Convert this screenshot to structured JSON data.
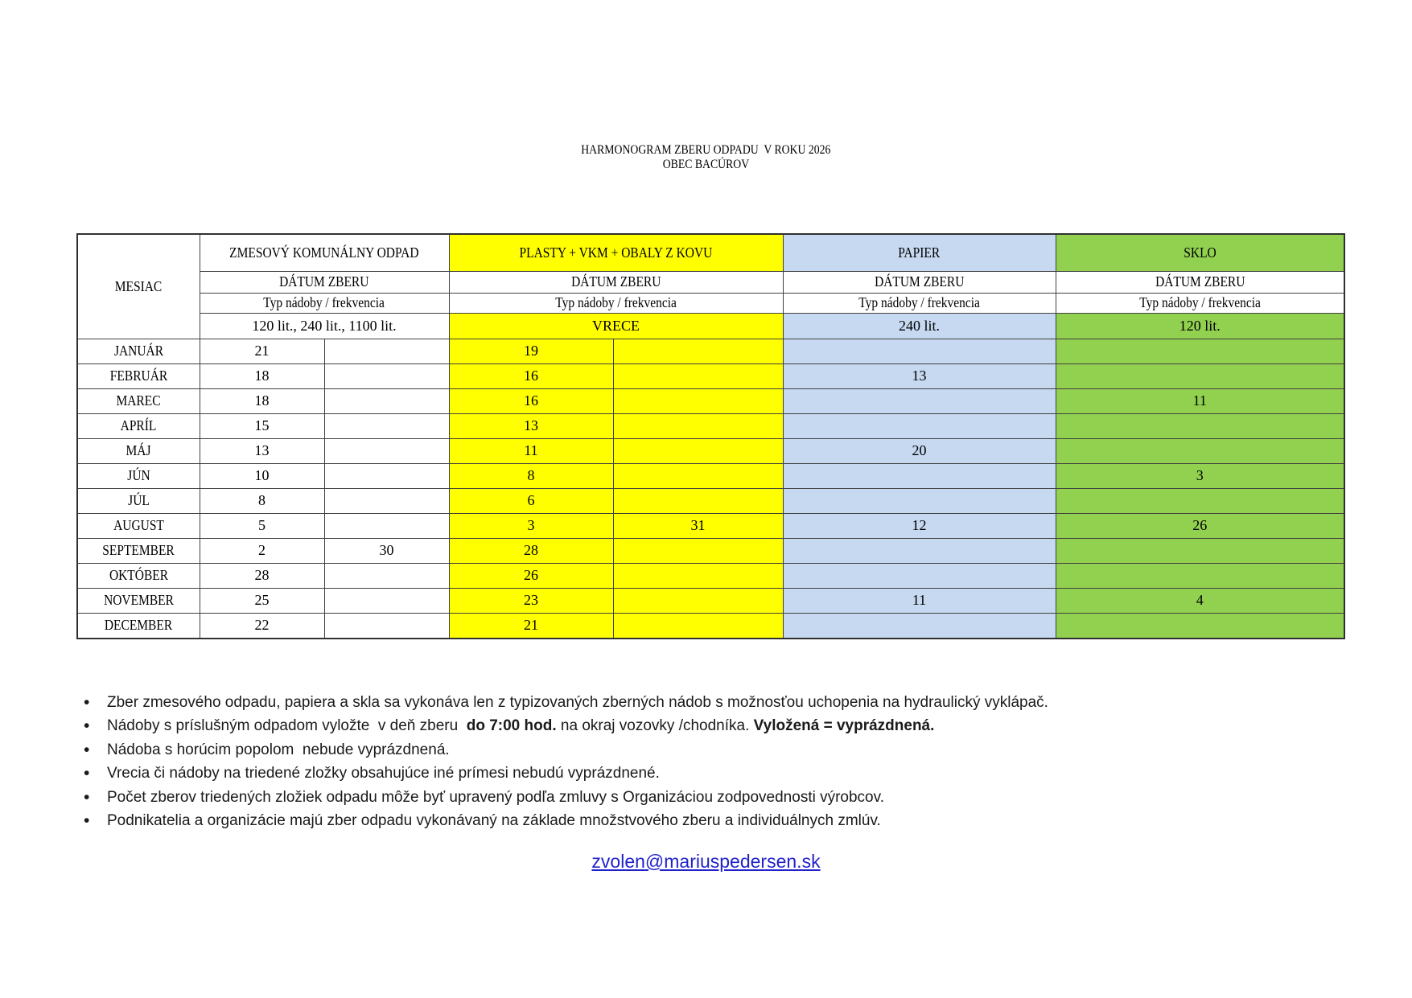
{
  "header": {
    "title_line1": "HARMONOGRAM ZBERU ODPADU  V ROKU 2026",
    "title_line2": "OBEC BACÚROV"
  },
  "table": {
    "month_header": "MESIAC",
    "date_header": "DÁTUM ZBERU",
    "type_header": "Typ nádoby / frekvencia",
    "categories": [
      {
        "label": "ZMESOVÝ KOMUNÁLNY ODPAD",
        "color": "#ffffff",
        "container": "120 lit., 240 lit., 1100 lit.",
        "subcols": 2
      },
      {
        "label": "PLASTY + VKM + OBALY Z KOVU",
        "color": "#ffff00",
        "container": "VRECE",
        "subcols": 2
      },
      {
        "label": "PAPIER",
        "color": "#c6d9f1",
        "container": "240 lit.",
        "subcols": 1
      },
      {
        "label": "SKLO",
        "color": "#92d050",
        "container": "120 lit.",
        "subcols": 1
      }
    ],
    "rows": [
      {
        "month": "JANUÁR",
        "cells": [
          "21",
          "",
          "19",
          "",
          "",
          ""
        ]
      },
      {
        "month": "FEBRUÁR",
        "cells": [
          "18",
          "",
          "16",
          "",
          "13",
          ""
        ]
      },
      {
        "month": "MAREC",
        "cells": [
          "18",
          "",
          "16",
          "",
          "",
          "11"
        ]
      },
      {
        "month": "APRÍL",
        "cells": [
          "15",
          "",
          "13",
          "",
          "",
          ""
        ]
      },
      {
        "month": "MÁJ",
        "cells": [
          "13",
          "",
          "11",
          "",
          "20",
          ""
        ]
      },
      {
        "month": "JÚN",
        "cells": [
          "10",
          "",
          "8",
          "",
          "",
          "3"
        ]
      },
      {
        "month": "JÚL",
        "cells": [
          "8",
          "",
          "6",
          "",
          "",
          ""
        ]
      },
      {
        "month": "AUGUST",
        "cells": [
          "5",
          "",
          "3",
          "31",
          "12",
          "26"
        ]
      },
      {
        "month": "SEPTEMBER",
        "cells": [
          "2",
          "30",
          "28",
          "",
          "",
          ""
        ]
      },
      {
        "month": "OKTÓBER",
        "cells": [
          "28",
          "",
          "26",
          "",
          "",
          ""
        ]
      },
      {
        "month": "NOVEMBER",
        "cells": [
          "25",
          "",
          "23",
          "",
          "11",
          "4"
        ]
      },
      {
        "month": "DECEMBER",
        "cells": [
          "22",
          "",
          "21",
          "",
          "",
          ""
        ]
      }
    ]
  },
  "notes": [
    [
      {
        "text": "Zber zmesového odpadu, papiera a skla sa vykonáva len z typizovaných zberných nádob s možnosťou uchopenia na hydraulický vyklápač.",
        "bold": false
      }
    ],
    [
      {
        "text": "Nádoby s príslušným odpadom vyložte  v deň zberu  ",
        "bold": false
      },
      {
        "text": "do 7:00 hod.",
        "bold": true
      },
      {
        "text": " na okraj vozovky /chodníka. ",
        "bold": false
      },
      {
        "text": "Vyložená = vyprázdnená.",
        "bold": true
      }
    ],
    [
      {
        "text": "Nádoba s horúcim popolom  nebude vyprázdnená.",
        "bold": false
      }
    ],
    [
      {
        "text": "Vrecia či nádoby na triedené zložky obsahujúce iné prímesi nebudú vyprázdnené.",
        "bold": false
      }
    ],
    [
      {
        "text": "Počet zberov triedených zložiek odpadu môže byť upravený podľa zmluvy s Organizáciou zodpovednosti výrobcov.",
        "bold": false
      }
    ],
    [
      {
        "text": "Podnikatelia a organizácie majú zber odpadu vykonávaný na základe množstvového zberu a individuálnych zmlúv.",
        "bold": false
      }
    ]
  ],
  "footer": {
    "email": "zvolen@mariuspedersen.sk",
    "link_color": "#2222cc"
  }
}
